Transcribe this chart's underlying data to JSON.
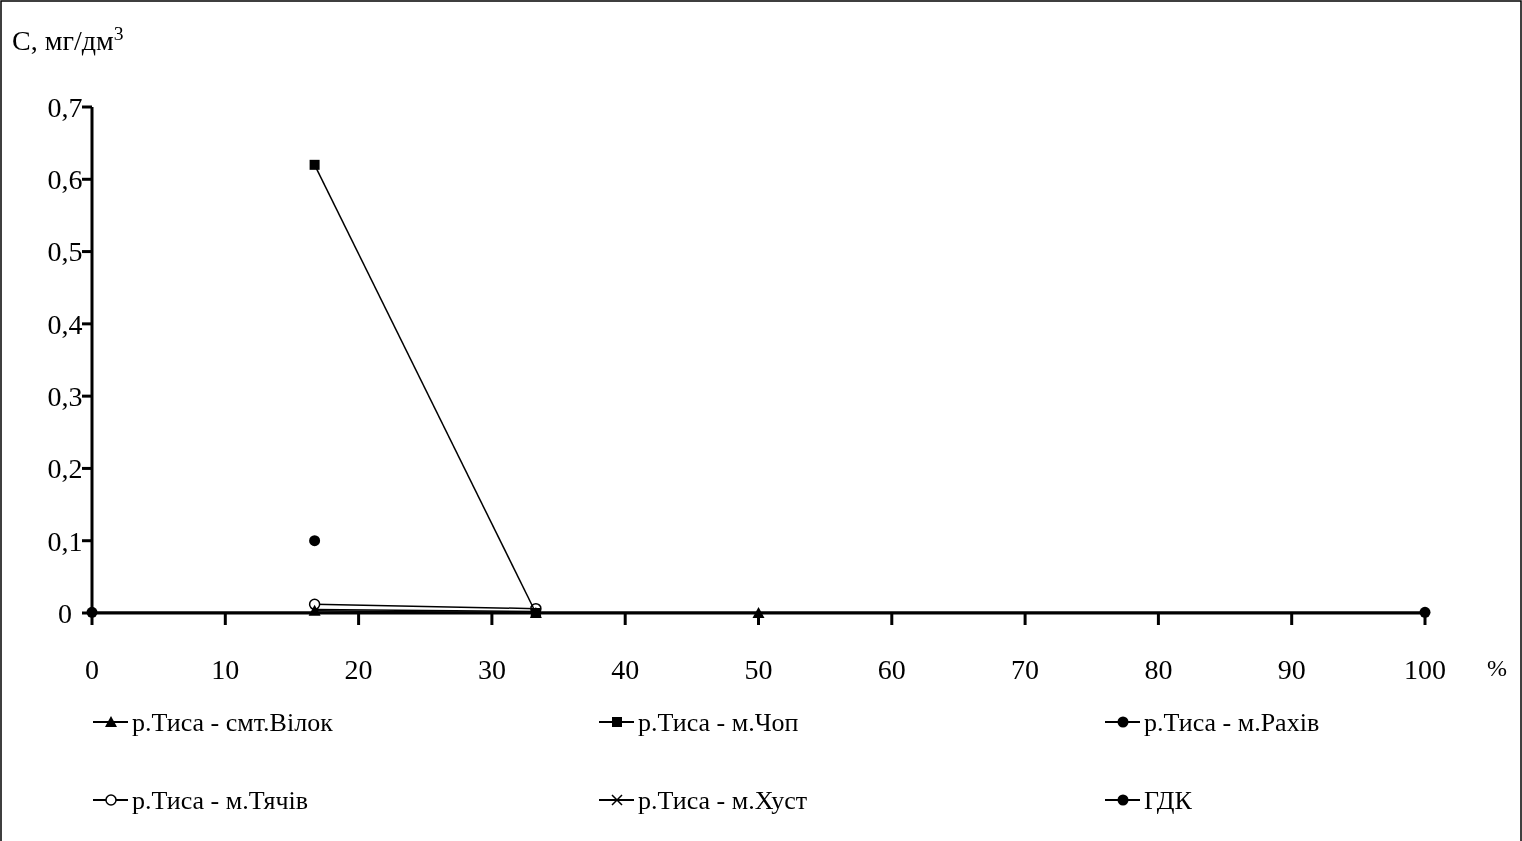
{
  "chart_data": {
    "type": "line",
    "xlabel": "%",
    "ylabel": "C, мг/дм$^{3}$",
    "xlim": [
      0,
      100
    ],
    "ylim": [
      0,
      0.7
    ],
    "xticks": [
      0,
      10,
      20,
      30,
      40,
      50,
      60,
      70,
      80,
      90,
      100
    ],
    "yticks": [
      {
        "value": 0,
        "label": "0"
      },
      {
        "value": 0.1,
        "label": "0,1"
      },
      {
        "value": 0.2,
        "label": "0,2"
      },
      {
        "value": 0.3,
        "label": "0,3"
      },
      {
        "value": 0.4,
        "label": "0,4"
      },
      {
        "value": 0.5,
        "label": "0,5"
      },
      {
        "value": 0.6,
        "label": "0,6"
      },
      {
        "value": 0.7,
        "label": "0,7"
      }
    ],
    "grid": false,
    "legend": "bottom",
    "series": [
      {
        "name": "р.Тиса - смт.Вілок",
        "color": "#000000",
        "marker": "triangle",
        "x": [
          16.7,
          33.3,
          50
        ],
        "values": [
          0.003,
          0,
          0
        ]
      },
      {
        "name": "р.Тиса - м.Чоп",
        "color": "#000000",
        "marker": "square",
        "x": [
          16.7,
          33.3
        ],
        "values": [
          0.62,
          0
        ]
      },
      {
        "name": "р.Тиса - м.Рахів",
        "color": "#000000",
        "marker": "circle",
        "x": [
          16.7
        ],
        "values": [
          0.1
        ]
      },
      {
        "name": "р.Тиса - м.Тячів",
        "color": "#000000",
        "marker": "open-circle",
        "x": [
          16.7,
          33.3
        ],
        "values": [
          0.012,
          0.006
        ]
      },
      {
        "name": "р.Тиса - м.Хуст",
        "color": "#000000",
        "marker": "cross",
        "x": [
          16.7,
          33.3
        ],
        "values": [
          0.005,
          0.002
        ]
      },
      {
        "name": "ГДК",
        "color": "#000000",
        "marker": "circle",
        "x": [
          0,
          100
        ],
        "values": [
          0.001,
          0.001
        ]
      }
    ]
  }
}
